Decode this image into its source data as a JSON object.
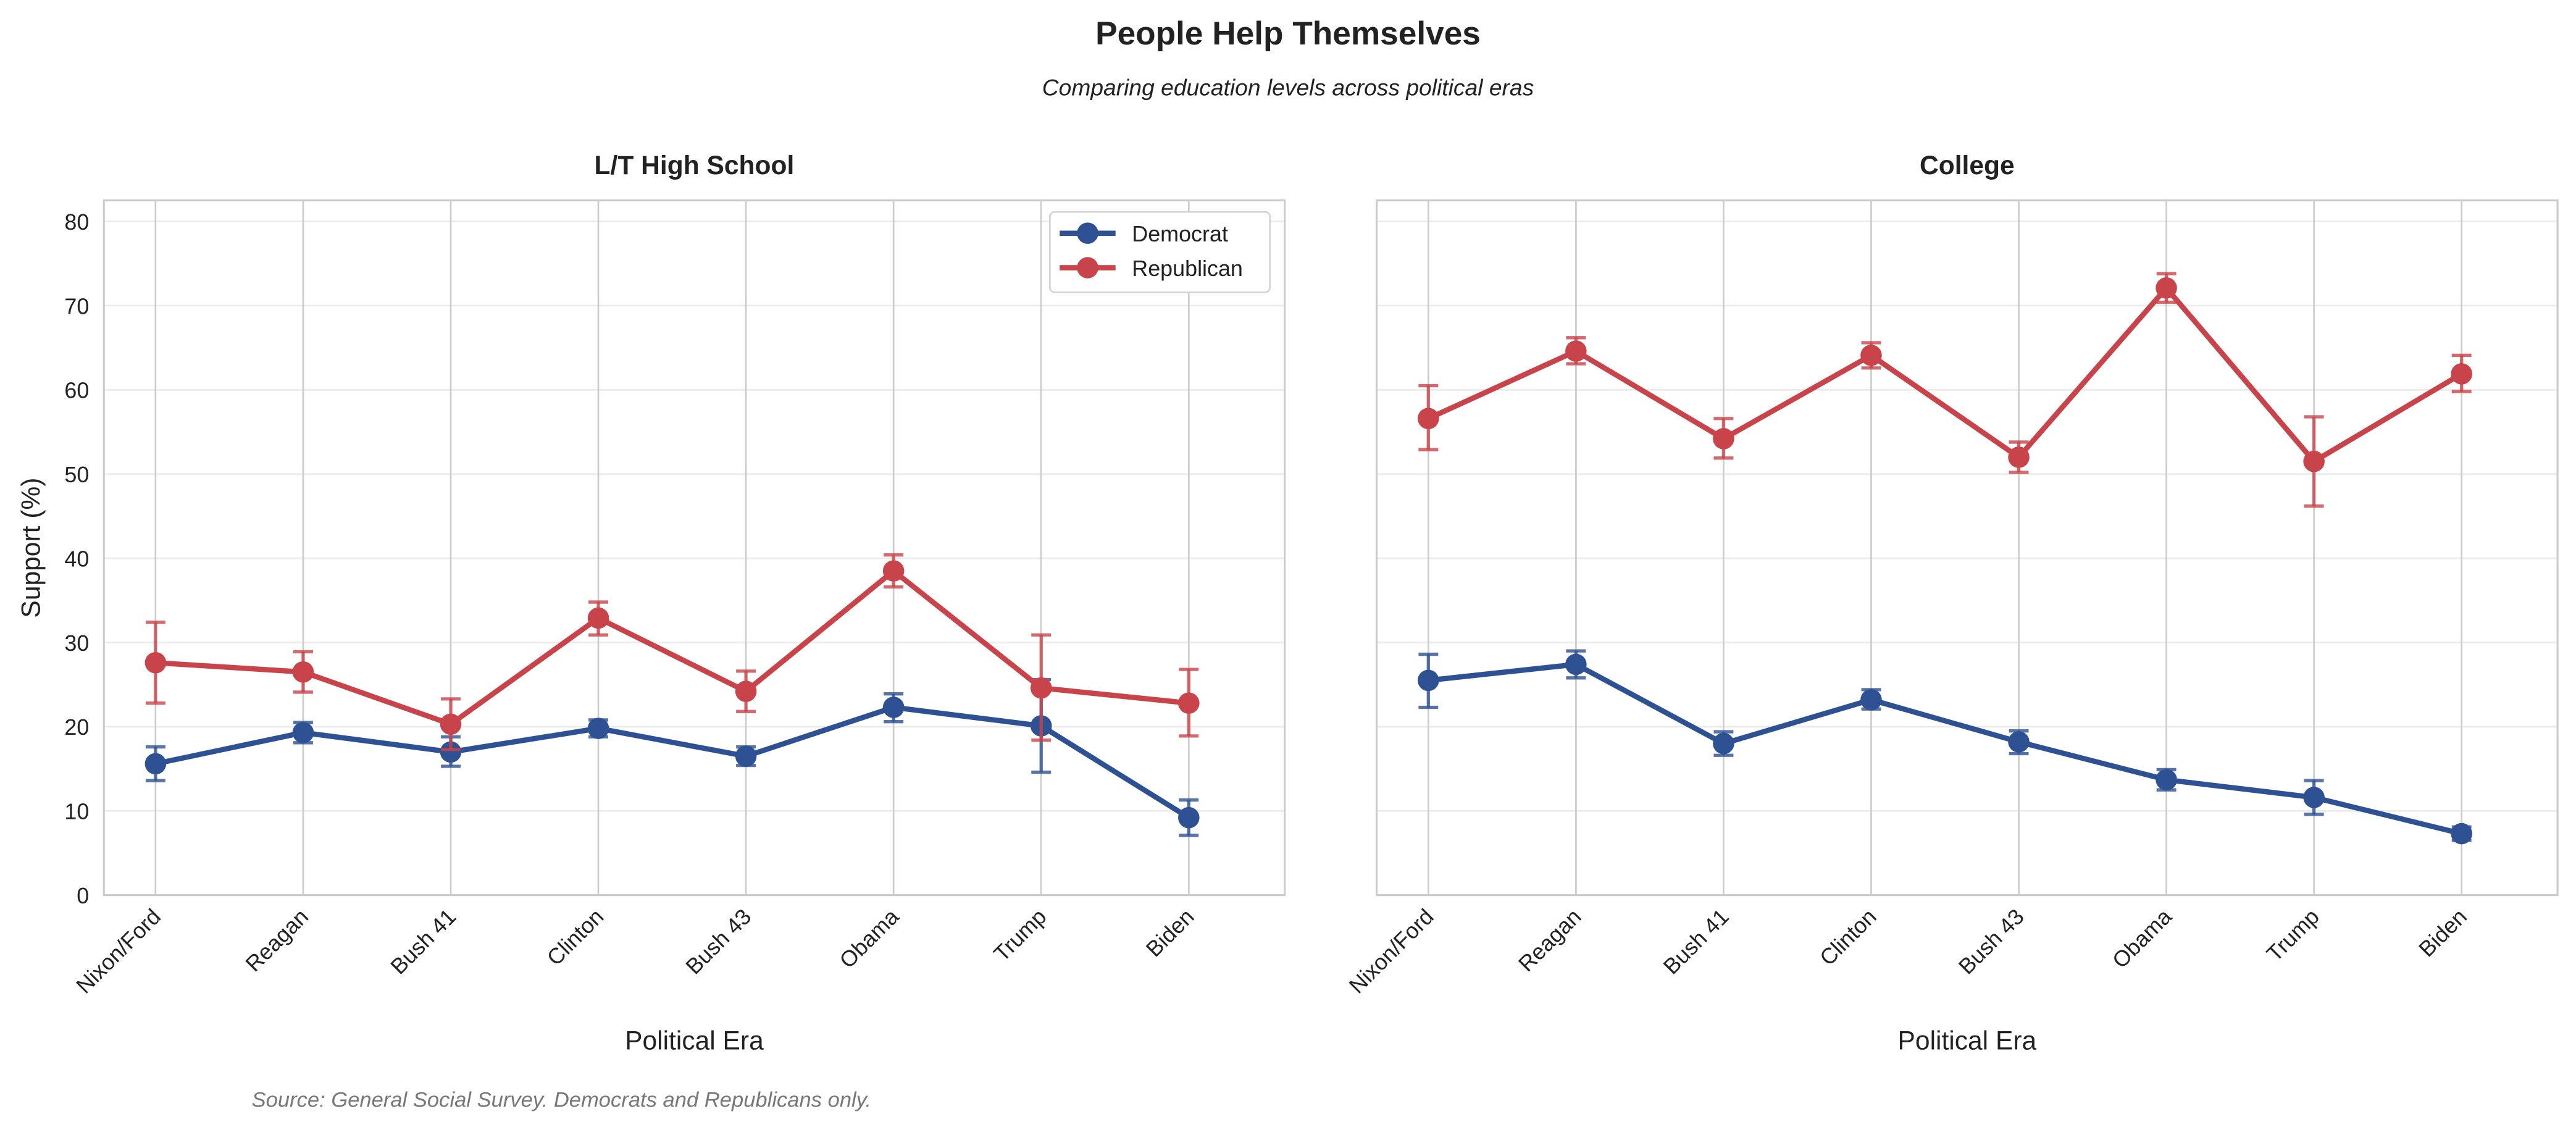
{
  "title": "People Help Themselves",
  "subtitle": "Comparing education levels across political eras",
  "source": "Source: General Social Survey. Democrats and Republicans only.",
  "colors": {
    "Democrat": "#2d5193",
    "Republican": "#c9444a"
  },
  "chart_data": [
    {
      "type": "line",
      "title": "L/T High School",
      "xlabel": "Political Era",
      "ylabel": "Support (%)",
      "ylim": [
        0,
        82.5
      ],
      "yticks": [
        0,
        10,
        20,
        30,
        40,
        50,
        60,
        70,
        80
      ],
      "grid": true,
      "legend": "upper-right",
      "categories": [
        "Nixon/Ford",
        "Reagan",
        "Bush 41",
        "Clinton",
        "Bush 43",
        "Obama",
        "Trump",
        "Biden"
      ],
      "series": [
        {
          "name": "Democrat",
          "values": [
            15.6,
            19.3,
            17.0,
            19.8,
            16.5,
            22.3,
            20.1,
            9.2
          ],
          "lower": [
            13.6,
            18.1,
            15.3,
            18.8,
            15.4,
            20.6,
            14.6,
            7.1
          ],
          "upper": [
            17.6,
            20.5,
            18.8,
            20.8,
            17.6,
            23.9,
            25.6,
            11.3
          ]
        },
        {
          "name": "Republican",
          "values": [
            27.6,
            26.5,
            20.3,
            32.9,
            24.2,
            38.5,
            24.6,
            22.8
          ],
          "lower": [
            22.8,
            24.1,
            17.3,
            30.9,
            21.8,
            36.6,
            18.4,
            18.9
          ],
          "upper": [
            32.4,
            28.9,
            23.3,
            34.8,
            26.6,
            40.4,
            30.9,
            26.8
          ]
        }
      ]
    },
    {
      "type": "line",
      "title": "College",
      "xlabel": "Political Era",
      "ylabel": "",
      "ylim": [
        0,
        82.5
      ],
      "grid": true,
      "categories": [
        "Nixon/Ford",
        "Reagan",
        "Bush 41",
        "Clinton",
        "Bush 43",
        "Obama",
        "Trump",
        "Biden"
      ],
      "series": [
        {
          "name": "Democrat",
          "values": [
            25.5,
            27.4,
            18.0,
            23.2,
            18.2,
            13.7,
            11.6,
            7.3
          ],
          "lower": [
            22.3,
            25.8,
            16.6,
            22.1,
            16.8,
            12.5,
            9.6,
            6.5
          ],
          "upper": [
            28.6,
            29.0,
            19.4,
            24.4,
            19.5,
            14.9,
            13.6,
            8.1
          ]
        },
        {
          "name": "Republican",
          "values": [
            56.6,
            64.6,
            54.2,
            64.1,
            52.0,
            72.1,
            51.5,
            61.9
          ],
          "lower": [
            52.9,
            63.1,
            51.9,
            62.6,
            50.2,
            70.4,
            46.2,
            59.8
          ],
          "upper": [
            60.5,
            66.2,
            56.6,
            65.6,
            53.8,
            73.8,
            56.8,
            64.1
          ]
        }
      ]
    }
  ]
}
